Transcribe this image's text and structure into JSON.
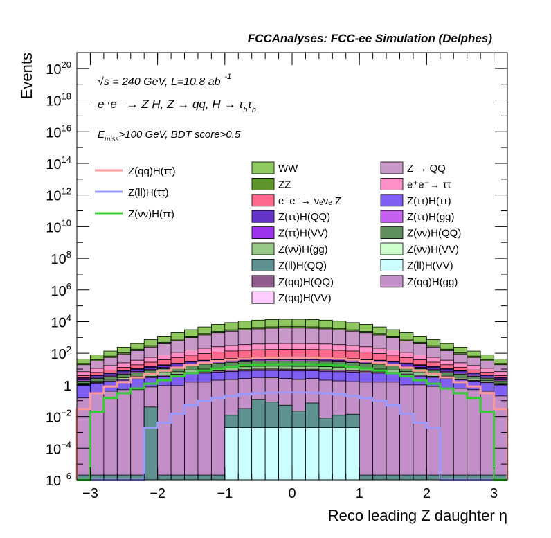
{
  "header": {
    "title": "FCCAnalyses: FCC-ee Simulation (Delphes)"
  },
  "annotations": {
    "energy_line": "√s = 240 GeV, L=10.8 ab",
    "lumi_exp": "-1",
    "process_line": "e⁺e⁻ → Z H, Z → qq, H → τ",
    "sub_h": "h",
    "cuts_E": "E",
    "cuts_sub": "miss",
    "cuts_rest": ">100 GeV, BDT score>0.5"
  },
  "chart_data": {
    "type": "histogram",
    "xlabel": "Reco leading Z daughter η",
    "ylabel": "Events",
    "xlim": [
      -3.2,
      3.2
    ],
    "ylim": [
      1e-06,
      1e+21
    ],
    "yscale": "log",
    "grid": false,
    "legend_placement": "top-center",
    "bins": [
      -3.2,
      -3.0,
      -2.8,
      -2.6,
      -2.4,
      -2.2,
      -2.0,
      -1.8,
      -1.6,
      -1.4,
      -1.2,
      -1.0,
      -0.8,
      -0.6,
      -0.4,
      -0.2,
      0.0,
      0.2,
      0.4,
      0.6,
      0.8,
      1.0,
      1.2,
      1.4,
      1.6,
      1.8,
      2.0,
      2.2,
      2.4,
      2.6,
      2.8,
      3.0,
      3.2
    ],
    "xticks": [
      -3,
      -2,
      -1,
      0,
      1,
      2,
      3
    ],
    "yticks": [
      {
        "value": 1e-06,
        "base": "10",
        "exp": "-6"
      },
      {
        "value": 0.0001,
        "base": "10",
        "exp": "-4"
      },
      {
        "value": 0.01,
        "base": "10",
        "exp": "-2"
      },
      {
        "value": 1,
        "base": "1",
        "exp": ""
      },
      {
        "value": 100.0,
        "base": "10",
        "exp": "2"
      },
      {
        "value": 10000.0,
        "base": "10",
        "exp": "4"
      },
      {
        "value": 1000000.0,
        "base": "10",
        "exp": "6"
      },
      {
        "value": 100000000.0,
        "base": "10",
        "exp": "8"
      },
      {
        "value": 10000000000.0,
        "base": "10",
        "exp": "10"
      },
      {
        "value": 1000000000000.0,
        "base": "10",
        "exp": "12"
      },
      {
        "value": 100000000000000.0,
        "base": "10",
        "exp": "14"
      },
      {
        "value": 1e+16,
        "base": "10",
        "exp": "16"
      },
      {
        "value": 1e+18,
        "base": "10",
        "exp": "18"
      },
      {
        "value": 1e+20,
        "base": "10",
        "exp": "20"
      }
    ],
    "stack": [
      {
        "name": "Z(ll)H(VV)",
        "color": "#ccffff",
        "values": [
          1e-06,
          1e-06,
          1e-06,
          1e-06,
          1e-06,
          1e-06,
          1e-06,
          1e-06,
          1e-06,
          1e-06,
          1e-06,
          0.002,
          0.002,
          0.002,
          0.002,
          0.002,
          0.002,
          0.002,
          0.002,
          0.002,
          0.002,
          1e-06,
          1e-06,
          1e-06,
          1e-06,
          1e-06,
          1e-06,
          1e-06,
          1e-06,
          1e-06,
          1e-06,
          1e-06
        ]
      },
      {
        "name": "Z(ll)H(QQ)",
        "color": "#5f9190",
        "values": [
          1e-06,
          1e-06,
          1e-06,
          1e-06,
          1e-06,
          0.04,
          1e-06,
          1e-06,
          1e-06,
          1e-06,
          1e-06,
          0.01,
          0.03,
          0.12,
          0.08,
          0.05,
          0.02,
          0.07,
          0.006,
          0.01,
          0.012,
          1e-06,
          1e-06,
          1e-06,
          1e-06,
          1e-06,
          1e-06,
          1e-06,
          1e-06,
          1e-06,
          1e-06,
          1e-06
        ]
      },
      {
        "name": "Z(qq)H(gg)",
        "color": "#c38fc8",
        "values": [
          0.15,
          0.3,
          0.4,
          0.5,
          0.5,
          0.7,
          0.9,
          0.9,
          1.5,
          1.5,
          2,
          2.2,
          2.5,
          2.8,
          2.8,
          2.5,
          2.2,
          2.5,
          2,
          1.8,
          1.6,
          1.5,
          1.5,
          1.5,
          1,
          1,
          0.8,
          0.6,
          0.6,
          0.5,
          0.4,
          0.2
        ]
      },
      {
        "name": "Z(ττ)H(ττ)",
        "color": "#7f5ff2",
        "values": [
          0.8,
          1,
          1.2,
          1.5,
          1.8,
          2.2,
          2.6,
          3,
          3.6,
          4,
          4.4,
          4.8,
          5,
          5.2,
          5.3,
          5.4,
          5.4,
          5.3,
          5.2,
          5,
          4.8,
          4.4,
          4,
          3.6,
          3,
          2.6,
          2.2,
          1.8,
          1.5,
          1.2,
          1,
          0.8
        ]
      },
      {
        "name": "Z(qq)H(QQ)",
        "color": "#8f5a8c",
        "values": [
          0.1,
          0.15,
          0.2,
          0.3,
          0.4,
          0.5,
          0.7,
          0.9,
          1.1,
          1.3,
          1.5,
          1.7,
          1.8,
          1.9,
          2,
          2,
          2,
          2,
          1.9,
          1.8,
          1.7,
          1.5,
          1.3,
          1.1,
          0.9,
          0.7,
          0.5,
          0.4,
          0.3,
          0.2,
          0.15,
          0.1
        ]
      },
      {
        "name": "Z(νν)H(gg)",
        "color": "#98c989",
        "values": [
          0.2,
          0.3,
          0.4,
          0.6,
          0.8,
          1.2,
          1.6,
          2,
          2.6,
          3.2,
          3.8,
          4.2,
          4.6,
          5,
          5.2,
          5.3,
          5.3,
          5.2,
          5,
          4.6,
          4.2,
          3.8,
          3.2,
          2.6,
          2,
          1.6,
          1.2,
          0.8,
          0.6,
          0.4,
          0.3,
          0.2
        ]
      },
      {
        "name": "Z(νν)H(QQ)",
        "color": "#5e8f5c",
        "values": [
          0.5,
          0.8,
          1.2,
          1.8,
          2.5,
          3.5,
          4.8,
          6.5,
          8.5,
          10.5,
          12.5,
          14,
          15.5,
          16.5,
          17,
          17.3,
          17.3,
          17,
          16.5,
          15.5,
          14,
          12.5,
          10.5,
          8.5,
          6.5,
          4.8,
          3.5,
          2.5,
          1.8,
          1.2,
          0.8,
          0.5
        ]
      },
      {
        "name": "Z(ττ)H(gg)",
        "color": "#c55ff0",
        "values": [
          0.3,
          0.4,
          0.6,
          0.8,
          1.1,
          1.5,
          2,
          2.6,
          3.2,
          3.8,
          4.4,
          5,
          5.4,
          5.8,
          6,
          6.1,
          6.1,
          6,
          5.8,
          5.4,
          5,
          4.4,
          3.8,
          3.2,
          2.6,
          2,
          1.5,
          1.1,
          0.8,
          0.6,
          0.4,
          0.3
        ]
      },
      {
        "name": "Z(ττ)H(QQ)",
        "color": "#6433c8",
        "values": [
          0.6,
          0.9,
          1.3,
          1.9,
          2.6,
          3.5,
          4.6,
          6,
          7.6,
          9.2,
          10.8,
          12.2,
          13.4,
          14.3,
          14.8,
          15,
          15,
          14.8,
          14.3,
          13.4,
          12.2,
          10.8,
          9.2,
          7.6,
          6,
          4.6,
          3.5,
          2.6,
          1.9,
          1.3,
          0.9,
          0.6
        ]
      },
      {
        "name": "Z(ττ)H(VV)",
        "color": "#9c33ec",
        "values": [
          0.2,
          0.3,
          0.45,
          0.65,
          0.9,
          1.2,
          1.6,
          2.1,
          2.6,
          3.1,
          3.6,
          4,
          4.4,
          4.7,
          4.9,
          5,
          5,
          4.9,
          4.7,
          4.4,
          4,
          3.6,
          3.1,
          2.6,
          2.1,
          1.6,
          1.2,
          0.9,
          0.65,
          0.45,
          0.3,
          0.2
        ]
      },
      {
        "name": "e⁺e⁻→ ν_e ν_e Z",
        "color": "#ff6a8c",
        "values": [
          1,
          2,
          3,
          5,
          8,
          13,
          20,
          30,
          45,
          60,
          75,
          90,
          100,
          110,
          115,
          118,
          118,
          115,
          110,
          100,
          90,
          75,
          60,
          45,
          30,
          20,
          13,
          8,
          5,
          3,
          2,
          1
        ]
      },
      {
        "name": "e⁺e⁻→ ττ",
        "color": "#ff90c8",
        "values": [
          3,
          5,
          8,
          12,
          18,
          28,
          40,
          60,
          85,
          110,
          140,
          170,
          200,
          220,
          235,
          240,
          240,
          235,
          220,
          200,
          170,
          140,
          110,
          85,
          60,
          40,
          28,
          18,
          12,
          8,
          5,
          3
        ]
      },
      {
        "name": "Z → QQ",
        "color": "#c898c8",
        "values": [
          12,
          22,
          38,
          65,
          110,
          190,
          320,
          520,
          820,
          1200,
          1700,
          2200,
          2700,
          3100,
          3400,
          3500,
          3500,
          3400,
          3100,
          2700,
          2200,
          1700,
          1200,
          820,
          520,
          320,
          190,
          110,
          65,
          38,
          22,
          12
        ]
      },
      {
        "name": "ZZ",
        "color": "#5f962c",
        "values": [
          4,
          7,
          12,
          20,
          35,
          60,
          95,
          150,
          230,
          330,
          450,
          580,
          700,
          800,
          870,
          900,
          900,
          870,
          800,
          700,
          580,
          450,
          330,
          230,
          150,
          95,
          60,
          35,
          20,
          12,
          7,
          4
        ]
      },
      {
        "name": "WW",
        "color": "#90c860",
        "values": [
          20,
          40,
          70,
          130,
          230,
          420,
          720,
          1200,
          1900,
          2900,
          4200,
          5600,
          7000,
          8200,
          9000,
          9400,
          9400,
          9000,
          8200,
          7000,
          5600,
          4200,
          2900,
          1900,
          1200,
          720,
          420,
          230,
          130,
          70,
          40,
          20
        ]
      }
    ],
    "signals": [
      {
        "name": "Z(qq)H(ττ)",
        "color": "#ff9999",
        "values": [
          0.03,
          0.3,
          0.8,
          1.5,
          3,
          5,
          8,
          12,
          18,
          25,
          32,
          40,
          46,
          50,
          52,
          53,
          53,
          52,
          50,
          46,
          40,
          32,
          25,
          18,
          12,
          8,
          5,
          3,
          1.5,
          0.8,
          0.3,
          0.03
        ]
      },
      {
        "name": "Z(ll)H(ττ)",
        "color": "#9999ff",
        "values": [
          1e-06,
          1e-06,
          1e-06,
          1e-06,
          1e-06,
          0.002,
          0.004,
          0.015,
          0.05,
          0.1,
          0.15,
          0.2,
          0.25,
          0.3,
          0.32,
          0.33,
          0.33,
          0.32,
          0.3,
          0.25,
          0.2,
          0.15,
          0.1,
          0.05,
          0.015,
          0.004,
          0.002,
          1e-06,
          1e-06,
          1e-06,
          1e-06,
          1e-06
        ]
      },
      {
        "name": "Z(νν)H(ττ)",
        "color": "#33cc33",
        "values": [
          1e-06,
          0.02,
          0.15,
          0.3,
          0.6,
          1.2,
          2,
          3.5,
          5.5,
          8,
          11,
          14,
          17,
          19,
          20,
          20.5,
          20.5,
          20,
          19,
          17,
          14,
          11,
          8,
          5.5,
          3.5,
          2,
          1.2,
          0.6,
          0.3,
          0.15,
          0.02,
          1e-06
        ]
      }
    ]
  },
  "legend": {
    "lines": [
      {
        "name": "Z(qq)H(ττ)",
        "color": "#ff9999"
      },
      {
        "name": "Z(ll)H(ττ)",
        "color": "#9999ff"
      },
      {
        "name": "Z(νν)H(ττ)",
        "color": "#33cc33"
      }
    ],
    "col1": [
      {
        "name": "WW",
        "color": "#90c860"
      },
      {
        "name": "ZZ",
        "color": "#5f962c"
      },
      {
        "name": "e⁺e⁻→ νₑνₑ Z",
        "color": "#ff6a8c"
      },
      {
        "name": "Z(ττ)H(QQ)",
        "color": "#6433c8"
      },
      {
        "name": "Z(ττ)H(VV)",
        "color": "#9c33ec"
      },
      {
        "name": "Z(νν)H(gg)",
        "color": "#98c989"
      },
      {
        "name": "Z(ll)H(QQ)",
        "color": "#5f9190"
      },
      {
        "name": "Z(qq)H(QQ)",
        "color": "#8f5a8c"
      },
      {
        "name": "Z(qq)H(VV)",
        "color": "#ffccff"
      }
    ],
    "col2": [
      {
        "name": "Z → QQ",
        "color": "#c898c8"
      },
      {
        "name": "e⁺e⁻→ ττ",
        "color": "#ff90c8"
      },
      {
        "name": "Z(ττ)H(ττ)",
        "color": "#7f5ff2"
      },
      {
        "name": "Z(ττ)H(gg)",
        "color": "#c55ff0"
      },
      {
        "name": "Z(νν)H(QQ)",
        "color": "#5e8f5c"
      },
      {
        "name": "Z(νν)H(VV)",
        "color": "#ccffcc"
      },
      {
        "name": "Z(ll)H(VV)",
        "color": "#ccffff"
      },
      {
        "name": "Z(qq)H(gg)",
        "color": "#c38fc8"
      }
    ]
  }
}
